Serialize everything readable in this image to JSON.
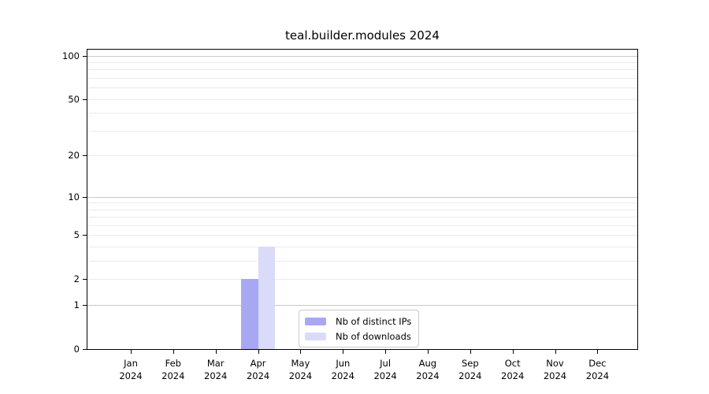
{
  "chart_data": {
    "type": "bar",
    "title": "teal.builder.modules 2024",
    "x": {
      "months": [
        "Jan",
        "Feb",
        "Mar",
        "Apr",
        "May",
        "Jun",
        "Jul",
        "Aug",
        "Sep",
        "Oct",
        "Nov",
        "Dec"
      ],
      "year": "2024"
    },
    "series": [
      {
        "name": "Nb of distinct IPs",
        "color": "#a8a8f2",
        "values": [
          0,
          0,
          0,
          2,
          0,
          0,
          0,
          0,
          0,
          0,
          0,
          0
        ]
      },
      {
        "name": "Nb of downloads",
        "color": "#dadaf9",
        "values": [
          0,
          0,
          0,
          4,
          0,
          0,
          0,
          0,
          0,
          0,
          0,
          0
        ]
      }
    ],
    "y_axis": {
      "scale": "log1p",
      "ticks": [
        0,
        1,
        2,
        5,
        10,
        20,
        50,
        100
      ],
      "major_gridlines": [
        1,
        10,
        100
      ],
      "minor_gridlines": [
        2,
        3,
        4,
        5,
        6,
        7,
        8,
        9,
        20,
        30,
        40,
        50,
        60,
        70,
        80,
        90
      ],
      "ylim": [
        0,
        110
      ]
    },
    "legend": {
      "position": "bottom-center",
      "items": [
        "Nb of distinct IPs",
        "Nb of downloads"
      ]
    },
    "colors": {
      "major_grid": "#c9c9c9",
      "minor_grid": "#ebebeb",
      "axis": "#000000",
      "text": "#000000",
      "legend_border": "#cccccc"
    }
  }
}
